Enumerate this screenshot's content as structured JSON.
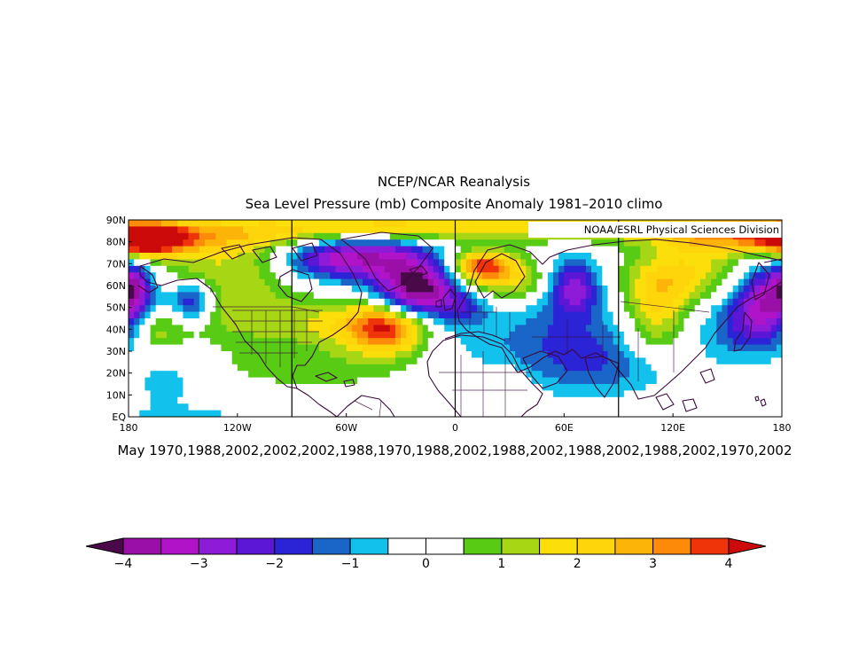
{
  "chart_data": {
    "type": "heatmap",
    "title": "NCEP/NCAR Reanalysis",
    "subtitle": "Sea Level Pressure (mb) Composite Anomaly 1981–2010 climo",
    "credit": "NOAA/ESRL Physical Sciences Division",
    "footer": "May 1970,1988,2002,2002,2002,1988,1970,1988,2002,1988,2002,1988,2002,1988,2002,1970,2002",
    "x_axis": {
      "range": [
        -180,
        180
      ],
      "ticks": [
        {
          "value": -180,
          "label": "180"
        },
        {
          "value": -120,
          "label": "120W"
        },
        {
          "value": -60,
          "label": "60W"
        },
        {
          "value": 0,
          "label": "0"
        },
        {
          "value": 60,
          "label": "60E"
        },
        {
          "value": 120,
          "label": "120E"
        },
        {
          "value": 180,
          "label": "180"
        }
      ]
    },
    "y_axis": {
      "range": [
        0,
        90
      ],
      "ticks": [
        {
          "value": 90,
          "label": "90N"
        },
        {
          "value": 80,
          "label": "80N"
        },
        {
          "value": 70,
          "label": "70N"
        },
        {
          "value": 60,
          "label": "60N"
        },
        {
          "value": 50,
          "label": "50N"
        },
        {
          "value": 40,
          "label": "40N"
        },
        {
          "value": 30,
          "label": "30N"
        },
        {
          "value": 20,
          "label": "20N"
        },
        {
          "value": 10,
          "label": "10N"
        },
        {
          "value": 0,
          "label": "EQ"
        }
      ]
    },
    "reference_meridians": [
      -90,
      0,
      90
    ],
    "colorbar": {
      "levels": [
        -4,
        -3.5,
        -3,
        -2.5,
        -2,
        -1.5,
        -1,
        -0.5,
        0,
        0.5,
        1,
        1.5,
        2,
        2.5,
        3,
        3.5,
        4
      ],
      "tick_labels": [
        {
          "value": -4,
          "label": "−4"
        },
        {
          "value": -3,
          "label": "−3"
        },
        {
          "value": -2,
          "label": "−2"
        },
        {
          "value": -1,
          "label": "−1"
        },
        {
          "value": 0,
          "label": "0"
        },
        {
          "value": 1,
          "label": "1"
        },
        {
          "value": 2,
          "label": "2"
        },
        {
          "value": 3,
          "label": "3"
        },
        {
          "value": 4,
          "label": "4"
        }
      ],
      "colors": [
        "#6a0a6e",
        "#9a0fa8",
        "#b013c8",
        "#8e1bd8",
        "#5b16d6",
        "#2b24d6",
        "#1a66c8",
        "#12c2ec",
        "#ffffff",
        "#ffffff",
        "#58cc14",
        "#a6d614",
        "#fbde0a",
        "#fdd50a",
        "#fdb408",
        "#fd8a08",
        "#f0340a",
        "#cc0a0a"
      ],
      "under_color": "#4a0a4a",
      "over_color": "#cc0a0a"
    },
    "anomaly_centers": [
      {
        "lon": -172,
        "lat": 81,
        "amp": 3.8,
        "slon": 14,
        "slat": 5
      },
      {
        "lon": -150,
        "lat": 82,
        "amp": 2.0,
        "slon": 22,
        "slat": 6
      },
      {
        "lon": -100,
        "lat": 85,
        "amp": 2.0,
        "slon": 30,
        "slat": 6
      },
      {
        "lon": -40,
        "lat": 86,
        "amp": 2.0,
        "slon": 26,
        "slat": 5
      },
      {
        "lon": 60,
        "lat": 87,
        "amp": 1.8,
        "slon": 70,
        "slat": 5
      },
      {
        "lon": 155,
        "lat": 83,
        "amp": 2.6,
        "slon": 30,
        "slat": 6
      },
      {
        "lon": 15,
        "lat": 69,
        "amp": 3.3,
        "slon": 12,
        "slat": 5
      },
      {
        "lon": 28,
        "lat": 62,
        "amp": 1.8,
        "slon": 20,
        "slat": 7
      },
      {
        "lon": -125,
        "lat": 67,
        "amp": 1.3,
        "slon": 28,
        "slat": 9
      },
      {
        "lon": -115,
        "lat": 46,
        "amp": 1.2,
        "slon": 25,
        "slat": 10
      },
      {
        "lon": -37,
        "lat": 40,
        "amp": 3.1,
        "slon": 14,
        "slat": 8
      },
      {
        "lon": -55,
        "lat": 42,
        "amp": 1.8,
        "slon": 25,
        "slat": 8
      },
      {
        "lon": -165,
        "lat": 39,
        "amp": 1.4,
        "slon": 10,
        "slat": 6
      },
      {
        "lon": -75,
        "lat": 22,
        "amp": 0.8,
        "slon": 40,
        "slat": 7
      },
      {
        "lon": 130,
        "lat": 67,
        "amp": 1.6,
        "slon": 22,
        "slat": 9
      },
      {
        "lon": 112,
        "lat": 58,
        "amp": 1.3,
        "slon": 15,
        "slat": 9
      },
      {
        "lon": 110,
        "lat": 42,
        "amp": 1.6,
        "slon": 12,
        "slat": 12
      },
      {
        "lon": 28,
        "lat": 15,
        "amp": 0.9,
        "slon": 10,
        "slat": 6
      },
      {
        "lon": -20,
        "lat": 58,
        "amp": -4.4,
        "slon": 16,
        "slat": 9
      },
      {
        "lon": -45,
        "lat": 74,
        "amp": -3.0,
        "slon": 22,
        "slat": 8
      },
      {
        "lon": -75,
        "lat": 72,
        "amp": -1.8,
        "slon": 18,
        "slat": 7
      },
      {
        "lon": 5,
        "lat": 50,
        "amp": -1.2,
        "slon": 10,
        "slat": 6
      },
      {
        "lon": 65,
        "lat": 60,
        "amp": -2.8,
        "slon": 10,
        "slat": 9
      },
      {
        "lon": 63,
        "lat": 38,
        "amp": -1.2,
        "slon": 30,
        "slat": 14
      },
      {
        "lon": 85,
        "lat": 22,
        "amp": -0.9,
        "slon": 30,
        "slat": 9
      },
      {
        "lon": 173,
        "lat": 55,
        "amp": -3.1,
        "slon": 14,
        "slat": 11
      },
      {
        "lon": 162,
        "lat": 40,
        "amp": -1.6,
        "slon": 18,
        "slat": 10
      },
      {
        "lon": -177,
        "lat": 60,
        "amp": -2.0,
        "slon": 6,
        "slat": 7
      },
      {
        "lon": -145,
        "lat": 53,
        "amp": -2.4,
        "slon": 8,
        "slat": 6
      },
      {
        "lon": -160,
        "lat": 16,
        "amp": -1.0,
        "slon": 9,
        "slat": 6
      },
      {
        "lon": -150,
        "lat": 0,
        "amp": -0.6,
        "slon": 40,
        "slat": 6
      },
      {
        "lon": 20,
        "lat": 30,
        "amp": -0.4,
        "slon": 40,
        "slat": 14
      }
    ]
  }
}
